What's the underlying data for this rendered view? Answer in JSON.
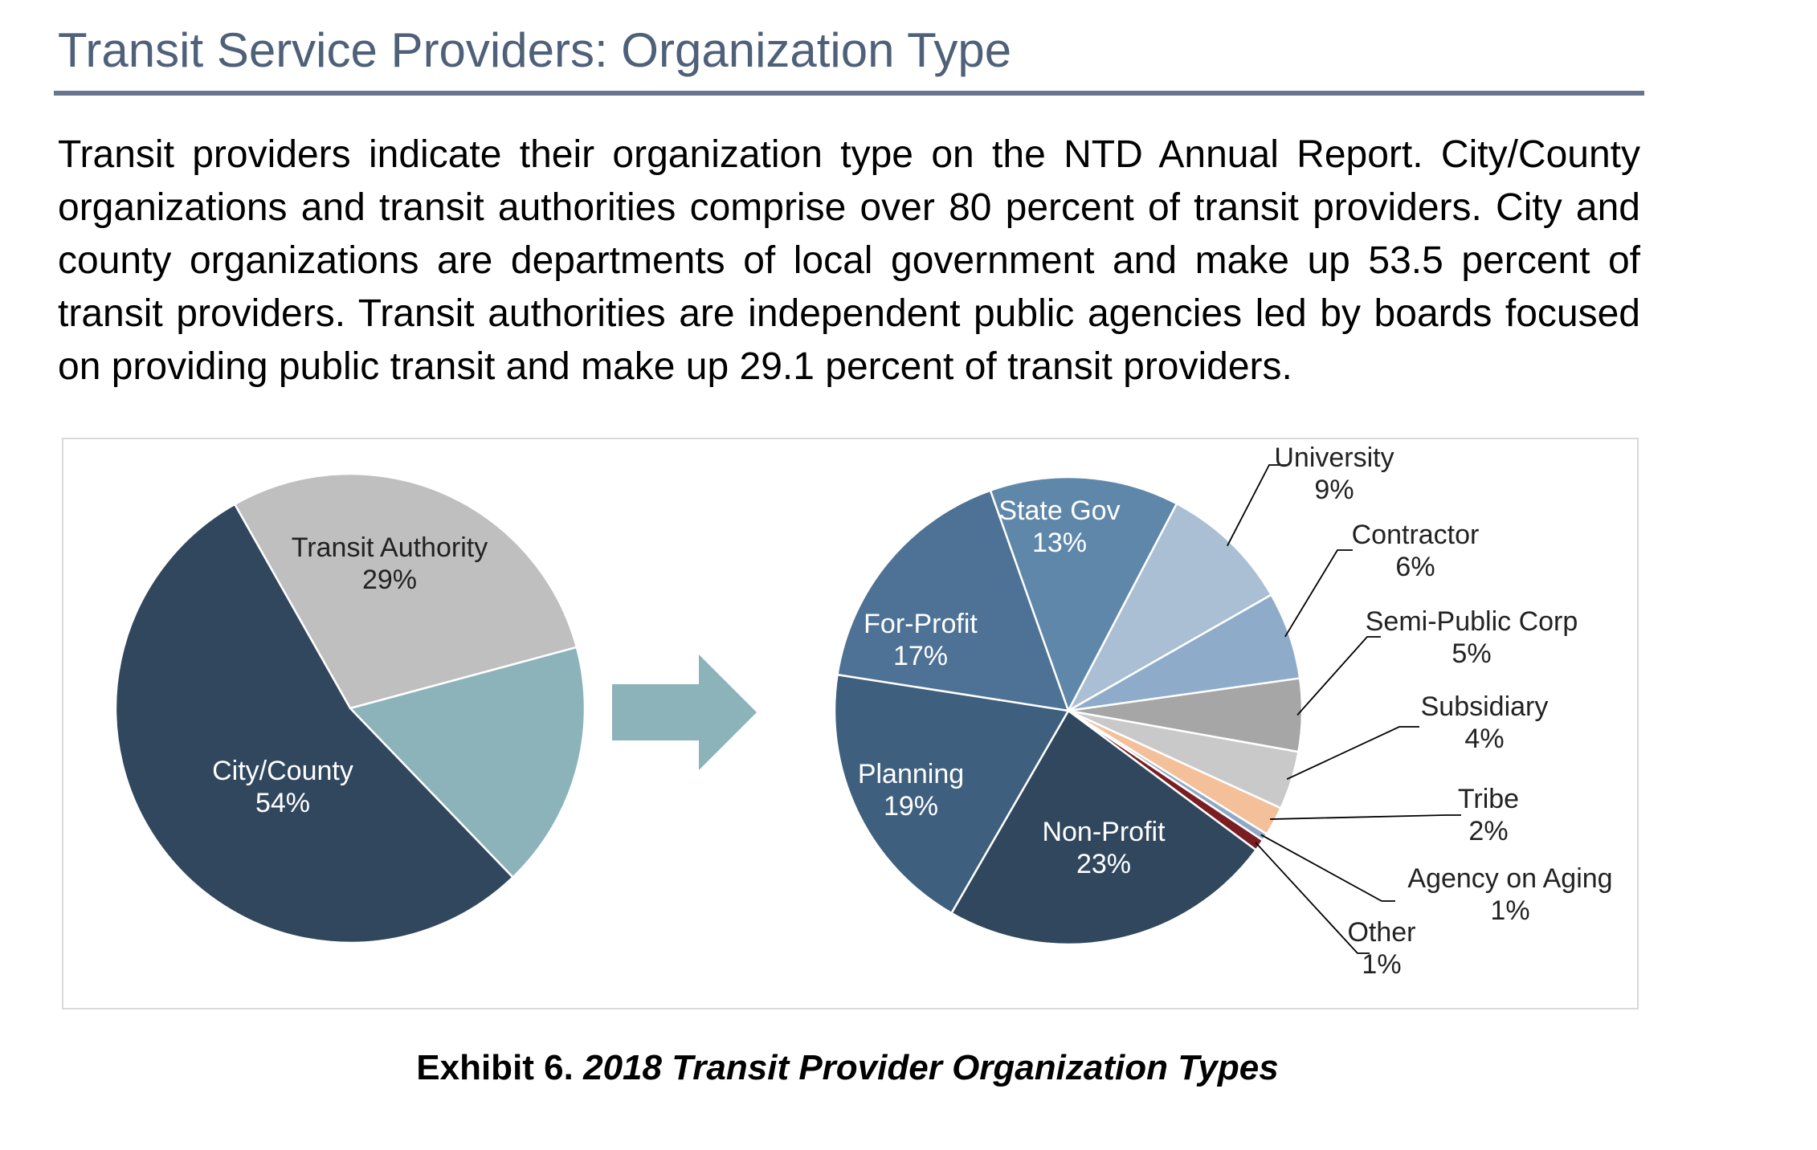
{
  "header": {
    "title": "Transit Service Providers: Organization Type"
  },
  "body": {
    "paragraph": "Transit providers indicate their organization type on the NTD Annual Report. City/County organizations and transit authorities comprise over 80 percent of transit providers. City and county organizations are departments of local government and make up 53.5 percent of transit providers. Transit authorities are independent public agencies led by boards focused on providing public transit and make up 29.1 percent of transit providers."
  },
  "caption": {
    "prefix": "Exhibit 6.",
    "title": "2018 Transit Provider Organization Types"
  },
  "chart_data": [
    {
      "type": "pie",
      "slices": [
        {
          "label": "Transit Authority",
          "value": 29,
          "value_label": "29%",
          "color": "#bfbfbf",
          "label_color": "#222222"
        },
        {
          "label": "",
          "value": 17,
          "value_label": "",
          "color": "#8bb3b9",
          "label_color": "#ffffff"
        },
        {
          "label": "City/County",
          "value": 54,
          "value_label": "54%",
          "color": "#31475e",
          "label_color": "#ffffff"
        }
      ]
    },
    {
      "type": "pie",
      "slices": [
        {
          "label": "State Gov",
          "value": 13,
          "value_label": "13%",
          "color": "#5f87aa",
          "label_color": "#ffffff",
          "placement": "inside"
        },
        {
          "label": "University",
          "value": 9,
          "value_label": "9%",
          "color": "#aabfd3",
          "label_color": "#222222",
          "placement": "outside"
        },
        {
          "label": "Contractor",
          "value": 6,
          "value_label": "6%",
          "color": "#8eacca",
          "label_color": "#222222",
          "placement": "outside"
        },
        {
          "label": "Semi-Public Corp",
          "value": 5,
          "value_label": "5%",
          "color": "#a6a6a6",
          "label_color": "#222222",
          "placement": "outside"
        },
        {
          "label": "Subsidiary",
          "value": 4,
          "value_label": "4%",
          "color": "#c9c9c9",
          "label_color": "#222222",
          "placement": "outside"
        },
        {
          "label": "Tribe",
          "value": 2,
          "value_label": "2%",
          "color": "#f4c09a",
          "label_color": "#222222",
          "placement": "outside"
        },
        {
          "label": "Agency on Aging",
          "value": 0.5,
          "value_label": "1%",
          "color": "#8ea9c6",
          "label_color": "#222222",
          "placement": "outside"
        },
        {
          "label": "Other",
          "value": 0.8,
          "value_label": "1%",
          "color": "#7a1e22",
          "label_color": "#222222",
          "placement": "outside"
        },
        {
          "label": "Non-Profit",
          "value": 23,
          "value_label": "23%",
          "color": "#31475e",
          "label_color": "#ffffff",
          "placement": "inside"
        },
        {
          "label": "Planning",
          "value": 19,
          "value_label": "19%",
          "color": "#3f5f7e",
          "label_color": "#ffffff",
          "placement": "inside"
        },
        {
          "label": "For-Profit",
          "value": 17,
          "value_label": "17%",
          "color": "#4d7295",
          "label_color": "#ffffff",
          "placement": "inside"
        }
      ]
    }
  ],
  "arrow": {
    "icon": "right-arrow-icon",
    "color": "#8bb3b9"
  }
}
